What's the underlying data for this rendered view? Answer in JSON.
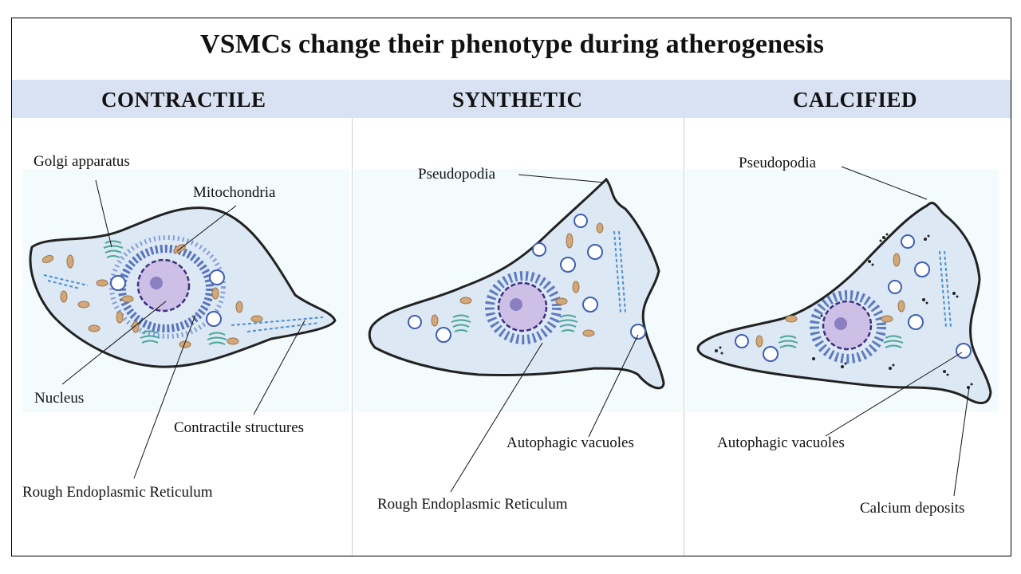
{
  "title": "VSMCs change their phenotype during atherogenesis",
  "columns": [
    {
      "heading": "CONTRACTILE"
    },
    {
      "heading": "SYNTHETIC"
    },
    {
      "heading": "CALCIFIED"
    }
  ],
  "labels": {
    "contractile": {
      "golgi": "Golgi apparatus",
      "mito": "Mitochondria",
      "nucleus": "Nucleus",
      "contractile_structures": "Contractile structures",
      "rer": "Rough Endoplasmic Reticulum"
    },
    "synthetic": {
      "pseudopodia": "Pseudopodia",
      "autophagic": "Autophagic vacuoles",
      "rer": "Rough Endoplasmic Reticulum"
    },
    "calcified": {
      "pseudopodia": "Pseudopodia",
      "autophagic": "Autophagic vacuoles",
      "calcium": "Calcium deposits"
    }
  },
  "colors": {
    "header_band": "#d9e2f3",
    "cell_fill": "#dce8f4",
    "nucleus": "#cdbfe6",
    "nucleolus": "#8a7fc0",
    "rer": "#3f5fb5",
    "mito": "#d2a77a",
    "golgi": "#4aa69a"
  }
}
